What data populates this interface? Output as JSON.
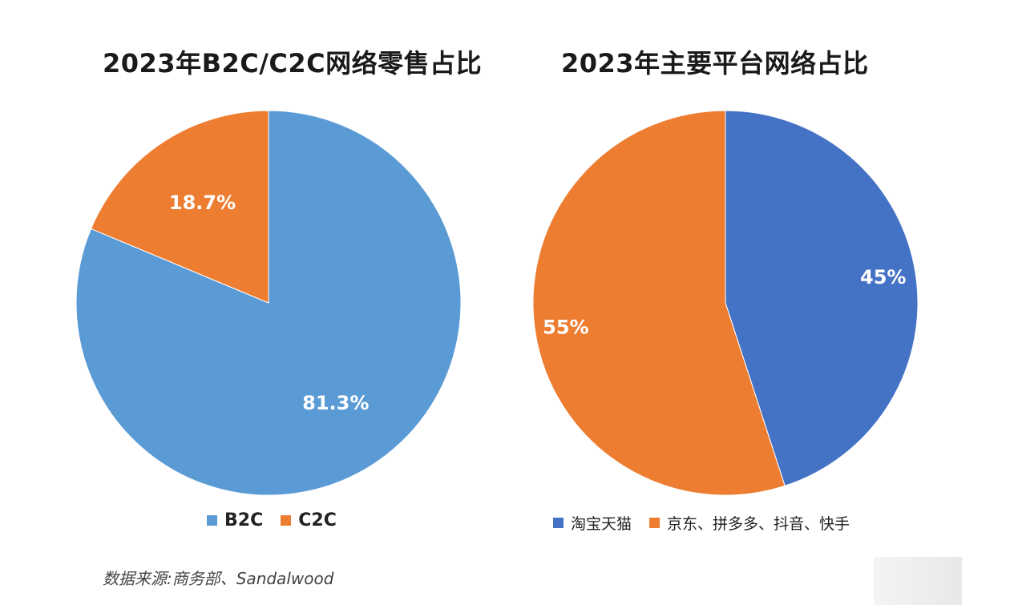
{
  "source_note": "数据来源:商务部、Sandalwood",
  "chart_data": [
    {
      "type": "pie",
      "title": "2023年B2C/C2C网络零售占比",
      "labels": [
        "B2C",
        "C2C"
      ],
      "values": [
        81.3,
        18.7
      ],
      "value_labels": [
        "81.3%",
        "18.7%"
      ],
      "colors": [
        "#5b9bd5",
        "#ed7d31"
      ],
      "legend_position": "bottom"
    },
    {
      "type": "pie",
      "title": "2023年主要平台网络占比",
      "labels": [
        "淘宝天猫",
        "京东、拼多多、抖音、快手"
      ],
      "values": [
        45,
        55
      ],
      "value_labels": [
        "45%",
        "55%"
      ],
      "colors": [
        "#4472c4",
        "#ed7d31"
      ],
      "legend_position": "bottom"
    }
  ]
}
